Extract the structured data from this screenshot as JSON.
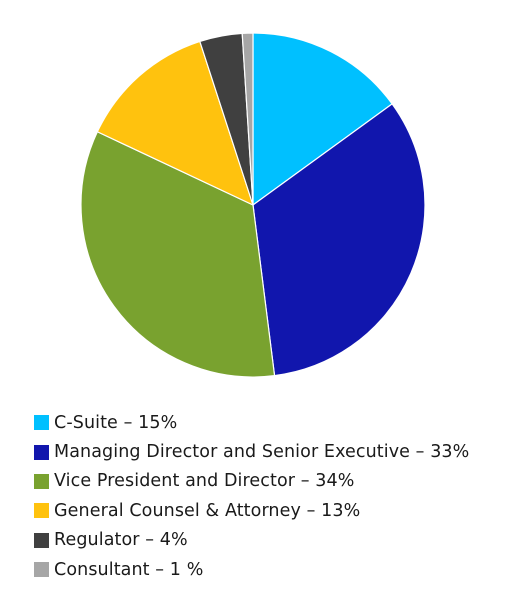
{
  "chart_data": {
    "type": "pie",
    "title": "",
    "slices": [
      {
        "label": "C-Suite – 15%",
        "value": 15,
        "color": "#00c0ff"
      },
      {
        "label": "Managing Director and Senior Executive – 33%",
        "value": 33,
        "color": "#1116ad"
      },
      {
        "label": "Vice President and Director – 34%",
        "value": 34,
        "color": "#79a22f"
      },
      {
        "label": "General Counsel & Attorney – 13%",
        "value": 13,
        "color": "#ffc20e"
      },
      {
        "label": "Regulator – 4%",
        "value": 4,
        "color": "#404040"
      },
      {
        "label": "Consultant – 1 %",
        "value": 1,
        "color": "#a6a6a6"
      }
    ],
    "start_angle": "12 o'clock",
    "direction": "clockwise",
    "legend_position": "bottom-left"
  }
}
